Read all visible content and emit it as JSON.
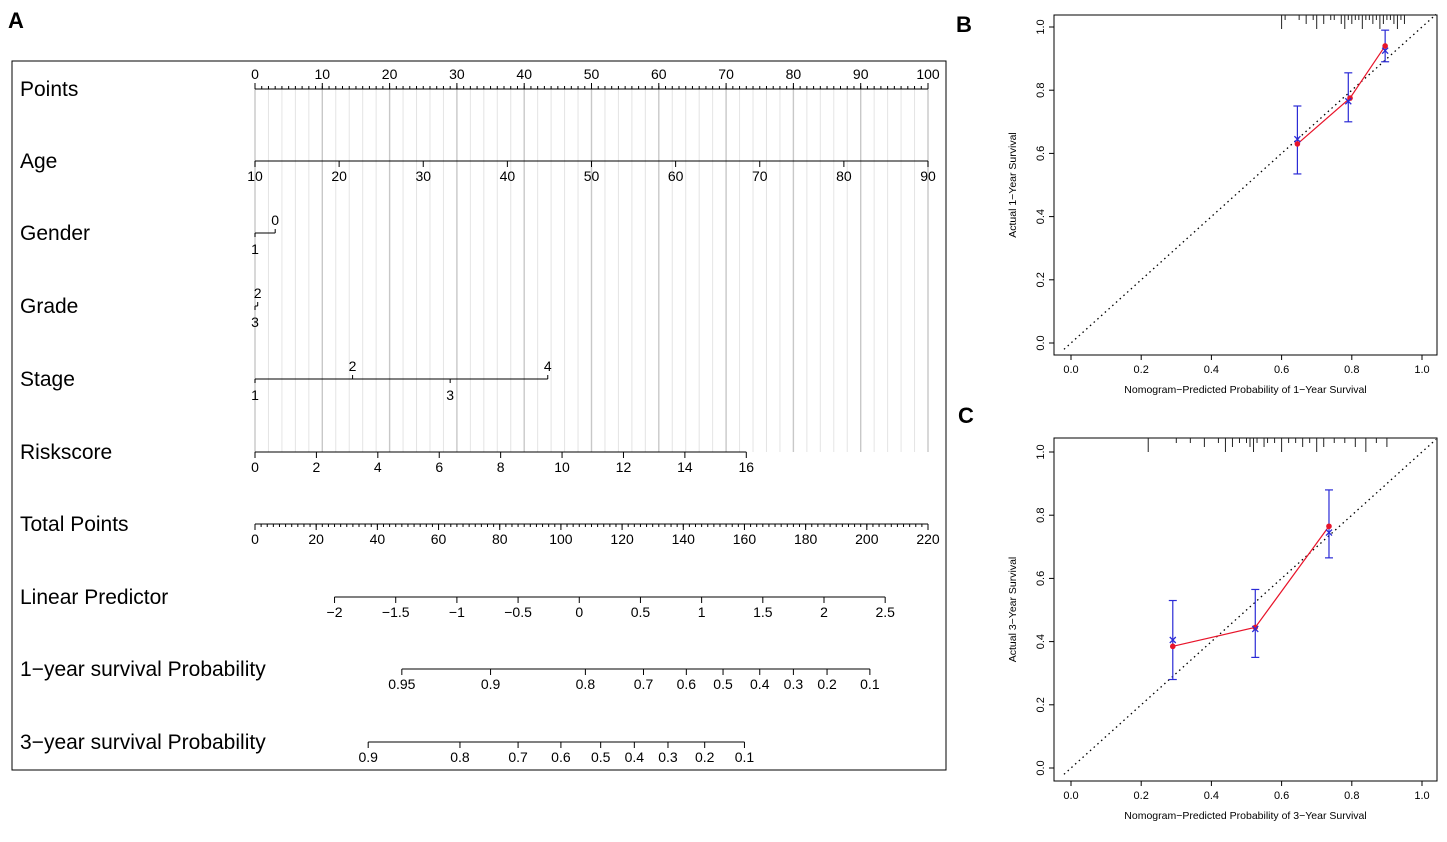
{
  "panels": {
    "A": "A",
    "B": "B",
    "C": "C"
  },
  "chart_data": [
    {
      "panel": "A",
      "type": "nomogram",
      "title": "",
      "rows": [
        {
          "label": "Points",
          "axis": {
            "ticks": [
              "0",
              "10",
              "20",
              "30",
              "40",
              "50",
              "60",
              "70",
              "80",
              "90",
              "100"
            ],
            "from": 0,
            "to": 100
          },
          "minor_step": 1
        },
        {
          "label": "Age",
          "axis": {
            "ticks": [
              "10",
              "20",
              "30",
              "40",
              "50",
              "60",
              "70",
              "80",
              "90"
            ],
            "from": 0,
            "to": 100
          }
        },
        {
          "label": "Gender",
          "levels": [
            {
              "level": "0",
              "points": 3,
              "side": "above"
            },
            {
              "level": "1",
              "points": 0,
              "side": "below"
            }
          ]
        },
        {
          "label": "Grade",
          "levels": [
            {
              "level": "2",
              "points": 0.4,
              "side": "above"
            },
            {
              "level": "3",
              "points": 0,
              "side": "below"
            }
          ]
        },
        {
          "label": "Stage",
          "levels": [
            {
              "level": "1",
              "points": 0,
              "side": "below"
            },
            {
              "level": "2",
              "points": 14.5,
              "side": "above"
            },
            {
              "level": "3",
              "points": 29,
              "side": "below"
            },
            {
              "level": "4",
              "points": 43.5,
              "side": "above"
            }
          ]
        },
        {
          "label": "Riskscore",
          "axis": {
            "ticks": [
              "0",
              "2",
              "4",
              "6",
              "8",
              "10",
              "12",
              "14",
              "16"
            ],
            "from": 0,
            "to": 73
          }
        },
        {
          "label": "Total Points",
          "axis": {
            "ticks": [
              "0",
              "20",
              "40",
              "60",
              "80",
              "100",
              "120",
              "140",
              "160",
              "180",
              "200",
              "220"
            ],
            "from": 0,
            "to": 220
          },
          "minor_step": 2
        },
        {
          "label": "Linear Predictor",
          "axis": {
            "ticks": [
              "−2",
              "−1.5",
              "−1",
              "−0.5",
              "0",
              "0.5",
              "1",
              "1.5",
              "2",
              "2.5"
            ],
            "values": [
              -2,
              -1.5,
              -1,
              -0.5,
              0,
              0.5,
              1,
              1.5,
              2,
              2.5
            ]
          }
        },
        {
          "label": "1−year survival Probability",
          "axis": {
            "ticks": [
              "0.95",
              "0.9",
              "0.8",
              "0.7",
              "0.6",
              "0.5",
              "0.4",
              "0.3",
              "0.2",
              "0.1"
            ],
            "total_points": [
              48,
              77,
              108,
              127,
              141,
              153,
              165,
              176,
              187,
              201
            ]
          }
        },
        {
          "label": "3−year survival Probability",
          "axis": {
            "ticks": [
              "0.9",
              "0.8",
              "0.7",
              "0.6",
              "0.5",
              "0.4",
              "0.3",
              "0.2",
              "0.1"
            ],
            "total_points": [
              37,
              67,
              86,
              100,
              113,
              124,
              135,
              147,
              160
            ]
          }
        }
      ],
      "linear_predictor_total_points": [
        26,
        46,
        66,
        86,
        106,
        126,
        146,
        166,
        186,
        206
      ]
    },
    {
      "panel": "B",
      "type": "scatter",
      "title": "",
      "xlabel": "Nomogram−Predicted Probability of 1−Year Survival",
      "ylabel": "Actual 1−Year Survival",
      "xlim": [
        0,
        1
      ],
      "ylim": [
        0,
        1
      ],
      "xticks": [
        "0.0",
        "0.2",
        "0.4",
        "0.6",
        "0.8",
        "1.0"
      ],
      "yticks": [
        "0.0",
        "0.2",
        "0.4",
        "0.6",
        "0.8",
        "1.0"
      ],
      "reference_line": "diagonal dotted",
      "colors": {
        "observed": "#e8142a",
        "corrected": "#2b2bd6",
        "reference": "#000000"
      },
      "points": [
        {
          "x": 0.645,
          "y": 0.63,
          "x_corr": 0.645,
          "y_corr": 0.645,
          "ci": [
            0.535,
            0.75
          ]
        },
        {
          "x": 0.795,
          "y": 0.775,
          "x_corr": 0.79,
          "y_corr": 0.765,
          "ci": [
            0.7,
            0.855
          ]
        },
        {
          "x": 0.895,
          "y": 0.94,
          "x_corr": 0.895,
          "y_corr": 0.925,
          "ci": [
            0.89,
            0.99
          ]
        }
      ],
      "rug": [
        0.6,
        0.61,
        0.65,
        0.67,
        0.69,
        0.7,
        0.72,
        0.74,
        0.75,
        0.77,
        0.78,
        0.79,
        0.8,
        0.81,
        0.82,
        0.83,
        0.84,
        0.85,
        0.86,
        0.87,
        0.88,
        0.89,
        0.9,
        0.91,
        0.92,
        0.93,
        0.94,
        0.95
      ]
    },
    {
      "panel": "C",
      "type": "scatter",
      "title": "",
      "xlabel": "Nomogram−Predicted Probability of 3−Year Survival",
      "ylabel": "Actual 3−Year Survival",
      "xlim": [
        0,
        1
      ],
      "ylim": [
        0,
        1
      ],
      "xticks": [
        "0.0",
        "0.2",
        "0.4",
        "0.6",
        "0.8",
        "1.0"
      ],
      "yticks": [
        "0.0",
        "0.2",
        "0.4",
        "0.6",
        "0.8",
        "1.0"
      ],
      "reference_line": "diagonal dotted",
      "colors": {
        "observed": "#e8142a",
        "corrected": "#2b2bd6",
        "reference": "#000000"
      },
      "points": [
        {
          "x": 0.29,
          "y": 0.385,
          "x_corr": 0.29,
          "y_corr": 0.405,
          "ci": [
            0.28,
            0.53
          ]
        },
        {
          "x": 0.525,
          "y": 0.445,
          "x_corr": 0.525,
          "y_corr": 0.44,
          "ci": [
            0.35,
            0.565
          ]
        },
        {
          "x": 0.735,
          "y": 0.765,
          "x_corr": 0.735,
          "y_corr": 0.745,
          "ci": [
            0.665,
            0.88
          ]
        }
      ],
      "rug": [
        0.22,
        0.3,
        0.34,
        0.38,
        0.42,
        0.44,
        0.46,
        0.48,
        0.5,
        0.51,
        0.52,
        0.53,
        0.55,
        0.56,
        0.58,
        0.6,
        0.62,
        0.64,
        0.66,
        0.68,
        0.7,
        0.72,
        0.75,
        0.78,
        0.81,
        0.84,
        0.87,
        0.9
      ]
    }
  ]
}
